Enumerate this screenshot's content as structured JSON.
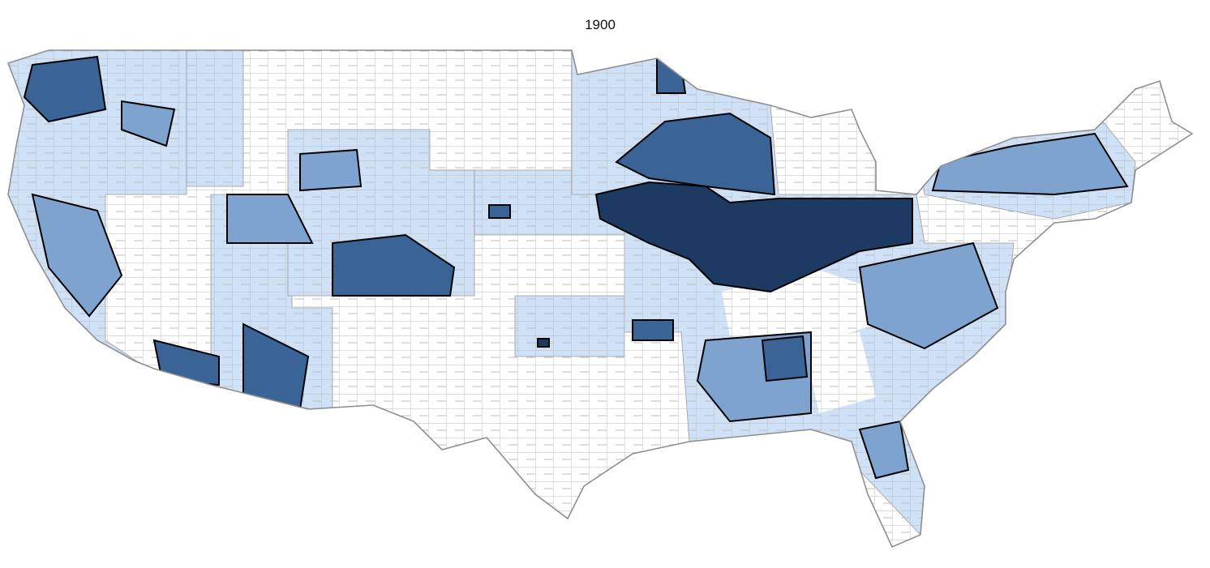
{
  "title": "1900"
}
